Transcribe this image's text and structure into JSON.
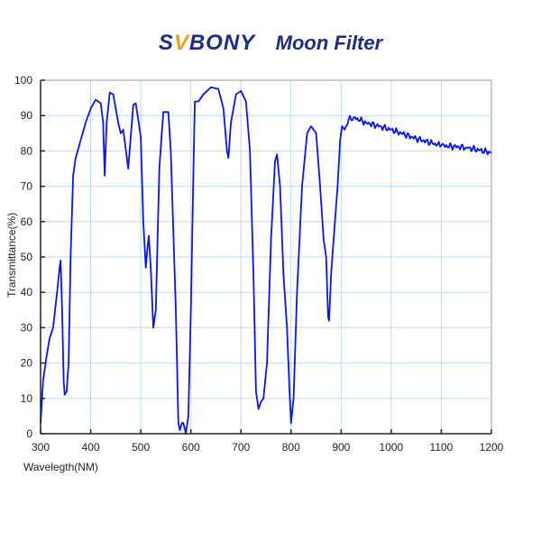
{
  "header": {
    "brand_prefix": "S",
    "brand_v": "V",
    "brand_suffix": "BONY",
    "title": "Moon Filter"
  },
  "colors": {
    "brand": "#1a2d8c",
    "brand_accent": "#f0a020",
    "curve": "#0a14f0",
    "grid": "#b8dcf8",
    "axis": "#222222"
  },
  "chart_data": {
    "type": "line",
    "title": "SVBONY Moon Filter",
    "xlabel": "Wavelegth(NM)",
    "ylabel": "Transmittance(%)",
    "xlim": [
      300,
      1200
    ],
    "ylim": [
      0,
      100
    ],
    "xticks": [
      300,
      400,
      500,
      600,
      700,
      800,
      900,
      1000,
      1100,
      1200
    ],
    "yticks": [
      0,
      10,
      20,
      30,
      40,
      50,
      60,
      70,
      80,
      90,
      100
    ],
    "grid": true,
    "legend": null,
    "series": [
      {
        "name": "Transmittance",
        "x": [
          300,
          305,
          312,
          318,
          325,
          333,
          338,
          340,
          343,
          346,
          348,
          352,
          356,
          360,
          365,
          370,
          380,
          390,
          400,
          410,
          420,
          425,
          428,
          432,
          438,
          445,
          455,
          460,
          465,
          475,
          485,
          490,
          500,
          505,
          510,
          513,
          516,
          520,
          525,
          530,
          537,
          545,
          555,
          560,
          570,
          575,
          578,
          582,
          585,
          590,
          595,
          600,
          605,
          608,
          615,
          625,
          640,
          655,
          665,
          672,
          675,
          680,
          690,
          700,
          710,
          718,
          725,
          730,
          735,
          740,
          745,
          752,
          760,
          768,
          772,
          778,
          785,
          792,
          797,
          800,
          805,
          812,
          822,
          832,
          840,
          850,
          858,
          865,
          870,
          874,
          876,
          880,
          885,
          893,
          898,
          902,
          907,
          915,
          925,
          950,
          1000,
          1050,
          1100,
          1150,
          1200
        ],
        "values": [
          3,
          15,
          22,
          27,
          30,
          40,
          47,
          49,
          35,
          15,
          11,
          12,
          20,
          50,
          73,
          78,
          83,
          88,
          92,
          94.5,
          93.5,
          88,
          73,
          88,
          96.5,
          96,
          88,
          85,
          86,
          75,
          93,
          93.5,
          84,
          60,
          47,
          52,
          56,
          47,
          30,
          35,
          75,
          91,
          91,
          80,
          35,
          3,
          1,
          3,
          3,
          0,
          5,
          35,
          73,
          94,
          94,
          96,
          98,
          97.5,
          92,
          80,
          78,
          88,
          96,
          97,
          94,
          80,
          45,
          12,
          7,
          9,
          10,
          20,
          55,
          77,
          79,
          70,
          45,
          30,
          12,
          3,
          10,
          40,
          70,
          85,
          87,
          85,
          70,
          55,
          50,
          33,
          32,
          45,
          55,
          70,
          83,
          87,
          86,
          89,
          89.5,
          88,
          86,
          83.5,
          81.5,
          81,
          79.5
        ]
      }
    ]
  }
}
